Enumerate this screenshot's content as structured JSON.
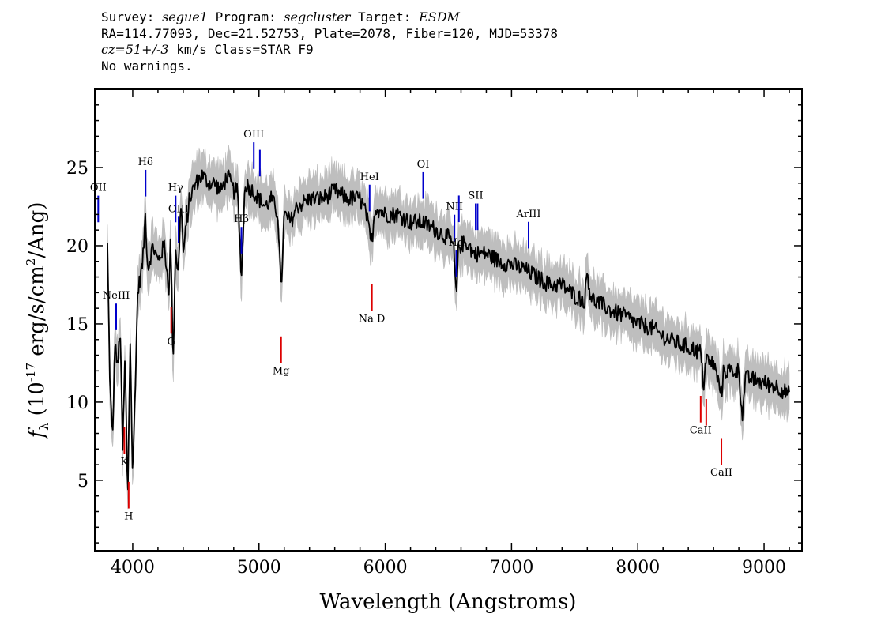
{
  "header": {
    "survey_label": "Survey:",
    "survey": "segue1",
    "program_label": "Program:",
    "program": "segcluster",
    "target_label": "Target:",
    "target": "ESDM",
    "coords": "RA=114.77093, Dec=21.52753, Plate=2078, Fiber=120, MJD=53378",
    "cz": "cz=51+/-3",
    "cz_rest": "km/s Class=STAR F9",
    "warnings": "No warnings."
  },
  "chart_data": {
    "type": "line",
    "title": "",
    "xlabel": "Wavelength (Angstroms)",
    "ylabel": "f_λ (10^-17 erg/s/cm²/Ang)",
    "xlim": [
      3700,
      9300
    ],
    "ylim": [
      0.5,
      30
    ],
    "xticks": [
      4000,
      5000,
      6000,
      7000,
      8000,
      9000
    ],
    "yticks": [
      5,
      10,
      15,
      20,
      25
    ],
    "grid": false,
    "legend": "none",
    "colors": {
      "flux": "#000000",
      "error": "#bebebe",
      "emission": "#0000cc",
      "absorption": "#dd0000"
    },
    "series": [
      {
        "name": "",
        "x": [
          3800,
          3820,
          3840,
          3860,
          3880,
          3900,
          3920,
          3940,
          3960,
          3980,
          4000,
          4040,
          4080,
          4100,
          4120,
          4160,
          4200,
          4250,
          4290,
          4300,
          4320,
          4340,
          4360,
          4383,
          4400,
          4450,
          4500,
          4550,
          4600,
          4650,
          4700,
          4750,
          4800,
          4830,
          4861,
          4890,
          4950,
          5000,
          5050,
          5100,
          5150,
          5175,
          5200,
          5250,
          5300,
          5400,
          5500,
          5600,
          5700,
          5800,
          5850,
          5890,
          5920,
          6000,
          6100,
          6200,
          6300,
          6400,
          6500,
          6540,
          6563,
          6580,
          6650,
          6700,
          6800,
          6900,
          7000,
          7100,
          7200,
          7300,
          7400,
          7500,
          7580,
          7600,
          7620,
          7650,
          7700,
          7800,
          7900,
          8000,
          8100,
          8200,
          8300,
          8400,
          8498,
          8520,
          8542,
          8560,
          8600,
          8662,
          8680,
          8750,
          8800,
          8830,
          8850,
          8900,
          9000,
          9100,
          9200
        ],
        "y": [
          20,
          11,
          7.5,
          14,
          12,
          15,
          7,
          13,
          3.5,
          14,
          5,
          17,
          19,
          22,
          18.5,
          20,
          19,
          20,
          17,
          21,
          12.5,
          20,
          18,
          23,
          19.5,
          23,
          24,
          24.5,
          24,
          24,
          23.5,
          24.5,
          23.5,
          23.5,
          18,
          24,
          23.5,
          23,
          22.5,
          23,
          22,
          17,
          22,
          21.5,
          22.5,
          23,
          23,
          23.5,
          23,
          23,
          22,
          20,
          22.5,
          22,
          22,
          21.5,
          21.5,
          21,
          20.5,
          20,
          16.5,
          20,
          20.2,
          19.5,
          19.5,
          19,
          18.8,
          18.5,
          18,
          17.5,
          17.5,
          16.8,
          16.5,
          18.5,
          17,
          16.5,
          16.3,
          15.8,
          15.5,
          15,
          14.8,
          14.2,
          13.8,
          13.5,
          13.2,
          11,
          13,
          12.5,
          12.5,
          10.5,
          12,
          12,
          12,
          9,
          11.5,
          11.5,
          11.2,
          11,
          10.5
        ]
      }
    ],
    "lines": [
      {
        "label": "OII",
        "x": 3727,
        "type": "emission"
      },
      {
        "label": "NeIII",
        "x": 3869,
        "type": "emission"
      },
      {
        "label": "Hδ",
        "x": 4102,
        "type": "emission"
      },
      {
        "label": "Hγ",
        "x": 4340,
        "type": "emission"
      },
      {
        "label": "OIII",
        "x": 4363,
        "type": "emission"
      },
      {
        "label": "Hβ",
        "x": 4861,
        "type": "emission"
      },
      {
        "label": "OIII",
        "x": 4959,
        "type": "emission"
      },
      {
        "label": "OIII",
        "x": 5007,
        "type": "emission"
      },
      {
        "label": "HeI",
        "x": 5876,
        "type": "emission"
      },
      {
        "label": "OI",
        "x": 6300,
        "type": "emission"
      },
      {
        "label": "NII",
        "x": 6548,
        "type": "emission"
      },
      {
        "label": "Hα",
        "x": 6563,
        "type": "emission"
      },
      {
        "label": "NII",
        "x": 6583,
        "type": "emission"
      },
      {
        "label": "SII",
        "x": 6716,
        "type": "emission"
      },
      {
        "label": "SII",
        "x": 6731,
        "type": "emission"
      },
      {
        "label": "ArIII",
        "x": 7135,
        "type": "emission"
      },
      {
        "label": "K",
        "x": 3934,
        "type": "absorption"
      },
      {
        "label": "H",
        "x": 3968,
        "type": "absorption"
      },
      {
        "label": "G",
        "x": 4305,
        "type": "absorption"
      },
      {
        "label": "Mg",
        "x": 5175,
        "type": "absorption"
      },
      {
        "label": "Na D",
        "x": 5894,
        "type": "absorption"
      },
      {
        "label": "CaII",
        "x": 8498,
        "type": "absorption"
      },
      {
        "label": "CaII",
        "x": 8542,
        "type": "absorption"
      },
      {
        "label": "CaII",
        "x": 8662,
        "type": "absorption"
      }
    ]
  }
}
